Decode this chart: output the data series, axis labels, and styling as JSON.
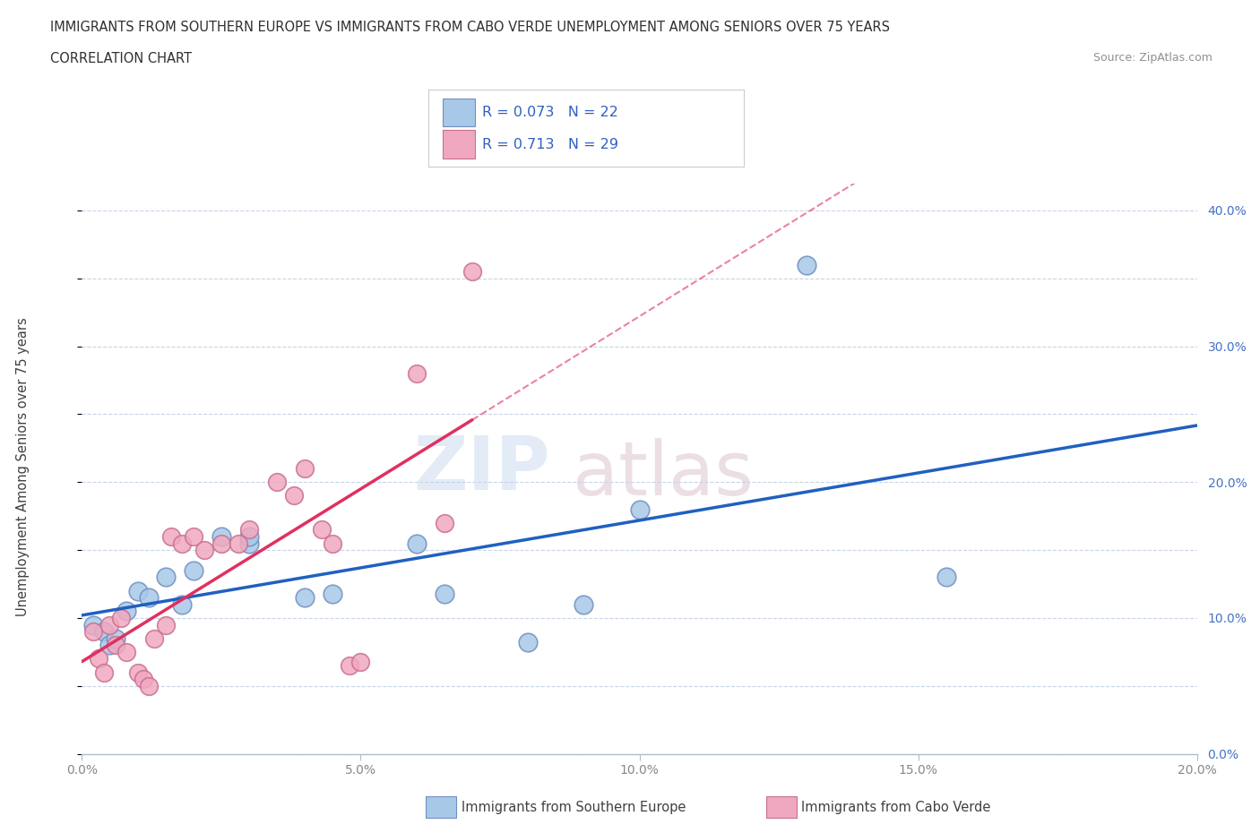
{
  "title_line1": "IMMIGRANTS FROM SOUTHERN EUROPE VS IMMIGRANTS FROM CABO VERDE UNEMPLOYMENT AMONG SENIORS OVER 75 YEARS",
  "title_line2": "CORRELATION CHART",
  "source": "Source: ZipAtlas.com",
  "ylabel": "Unemployment Among Seniors over 75 years",
  "legend_blue_label": "Immigrants from Southern Europe",
  "legend_pink_label": "Immigrants from Cabo Verde",
  "R_blue": "0.073",
  "N_blue": "22",
  "R_pink": "0.713",
  "N_pink": "29",
  "xlim": [
    0.0,
    0.2
  ],
  "ylim": [
    0.0,
    0.42
  ],
  "yticks": [
    0.0,
    0.1,
    0.2,
    0.3,
    0.4
  ],
  "xticks": [
    0.0,
    0.05,
    0.1,
    0.15,
    0.2
  ],
  "blue_color": "#a8c8e8",
  "pink_color": "#f0a8c0",
  "trend_blue": "#2060c0",
  "trend_pink": "#e03060",
  "blue_scatter_x": [
    0.002,
    0.004,
    0.005,
    0.006,
    0.008,
    0.01,
    0.012,
    0.015,
    0.018,
    0.02,
    0.025,
    0.03,
    0.03,
    0.04,
    0.045,
    0.06,
    0.065,
    0.08,
    0.09,
    0.1,
    0.13,
    0.155
  ],
  "blue_scatter_y": [
    0.095,
    0.09,
    0.08,
    0.085,
    0.105,
    0.12,
    0.115,
    0.13,
    0.11,
    0.135,
    0.16,
    0.155,
    0.16,
    0.115,
    0.118,
    0.155,
    0.118,
    0.082,
    0.11,
    0.18,
    0.36,
    0.13
  ],
  "pink_scatter_x": [
    0.002,
    0.003,
    0.004,
    0.005,
    0.006,
    0.007,
    0.008,
    0.01,
    0.011,
    0.012,
    0.013,
    0.015,
    0.016,
    0.018,
    0.02,
    0.022,
    0.025,
    0.028,
    0.03,
    0.035,
    0.038,
    0.04,
    0.043,
    0.045,
    0.048,
    0.05,
    0.06,
    0.065,
    0.07
  ],
  "pink_scatter_y": [
    0.09,
    0.07,
    0.06,
    0.095,
    0.08,
    0.1,
    0.075,
    0.06,
    0.055,
    0.05,
    0.085,
    0.095,
    0.16,
    0.155,
    0.16,
    0.15,
    0.155,
    0.155,
    0.165,
    0.2,
    0.19,
    0.21,
    0.165,
    0.155,
    0.065,
    0.068,
    0.28,
    0.17,
    0.355
  ],
  "bg_color": "#ffffff",
  "grid_color": "#c8d4e8",
  "axis_color": "#b0bcd0"
}
